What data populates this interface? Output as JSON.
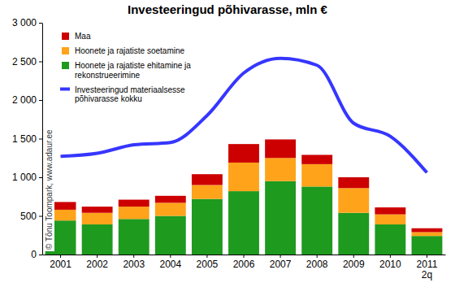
{
  "chart_data": {
    "type": "bar",
    "title": "Investeeringud põhivarasse, mln €",
    "stacked": true,
    "grid": false,
    "legend": "top-left",
    "annotation": "© Tõnu Toompark, www.adaur.ee",
    "categories": [
      "2001",
      "2002",
      "2003",
      "2004",
      "2005",
      "2006",
      "2007",
      "2008",
      "2009",
      "2010",
      "2011 2q"
    ],
    "ylim": [
      0,
      3000
    ],
    "yticks": [
      0,
      500,
      {
        "value": 1000,
        "label": "1 000"
      },
      {
        "value": 1500,
        "label": "1 500"
      },
      {
        "value": 2000,
        "label": "2 000"
      },
      {
        "value": 2500,
        "label": "2 500"
      },
      {
        "value": 3000,
        "label": "3 000"
      }
    ],
    "series": [
      {
        "name": "Hoonete ja rajatiste ehitamine ja rekonstrueerimine",
        "type": "bar",
        "color": "#1e9a1e",
        "values": [
          440,
          390,
          460,
          500,
          720,
          820,
          950,
          880,
          540,
          390,
          240
        ]
      },
      {
        "name": "Hoonete ja rajatiste soetamine",
        "type": "bar",
        "color": "#ffa31a",
        "values": [
          140,
          150,
          160,
          170,
          180,
          370,
          300,
          290,
          320,
          130,
          50
        ]
      },
      {
        "name": "Maa",
        "type": "bar",
        "color": "#cc0000",
        "values": [
          100,
          80,
          90,
          90,
          140,
          240,
          240,
          120,
          140,
          90,
          50
        ]
      },
      {
        "name": "Investeeringud materiaalsesse põhivarasse kokku",
        "type": "line",
        "color": "#3636ff",
        "line_style": "solid",
        "values": [
          1270,
          1310,
          1420,
          1450,
          1800,
          2350,
          2540,
          2450,
          1700,
          1530,
          1060
        ]
      }
    ]
  }
}
